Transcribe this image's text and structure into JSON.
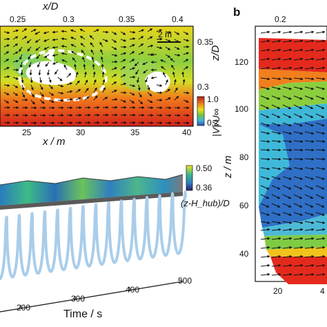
{
  "panel_a": {
    "top_axis_label": "x/D",
    "top_ticks": [
      "0.25",
      "0.3",
      "0.35",
      "0.4"
    ],
    "bottom_axis_label": "x / m",
    "bottom_ticks": [
      "25",
      "30",
      "35",
      "40"
    ],
    "right_axis_label": "z/D",
    "right_ticks": [
      "0.35",
      "0.3"
    ],
    "scale_bar": "2 m",
    "colorbar_ticks": [
      "1.0",
      "0.2"
    ],
    "colorbar_label": "|V|/U∞"
  },
  "panel_b": {
    "letter": "b",
    "top_ticks": [
      "0.2"
    ],
    "y_axis_label": "z / m",
    "y_ticks": [
      "120",
      "100",
      "80",
      "60",
      "40"
    ],
    "x_ticks": [
      "20",
      "4"
    ]
  },
  "panel_c": {
    "x_axis_label": "Time / s",
    "x_ticks": [
      "200",
      "300",
      "400",
      "500"
    ],
    "colorbar_ticks": [
      "0.50",
      "0.36"
    ],
    "colorbar_label": "(z-H_hub)/D"
  },
  "colors": {
    "red": "#d7261e",
    "orange": "#f28a1e",
    "yellow": "#e9e21b",
    "green": "#6fc04a",
    "cyan": "#3fb9d9",
    "blue": "#2f6fc6",
    "helix": "#a9cdea"
  }
}
